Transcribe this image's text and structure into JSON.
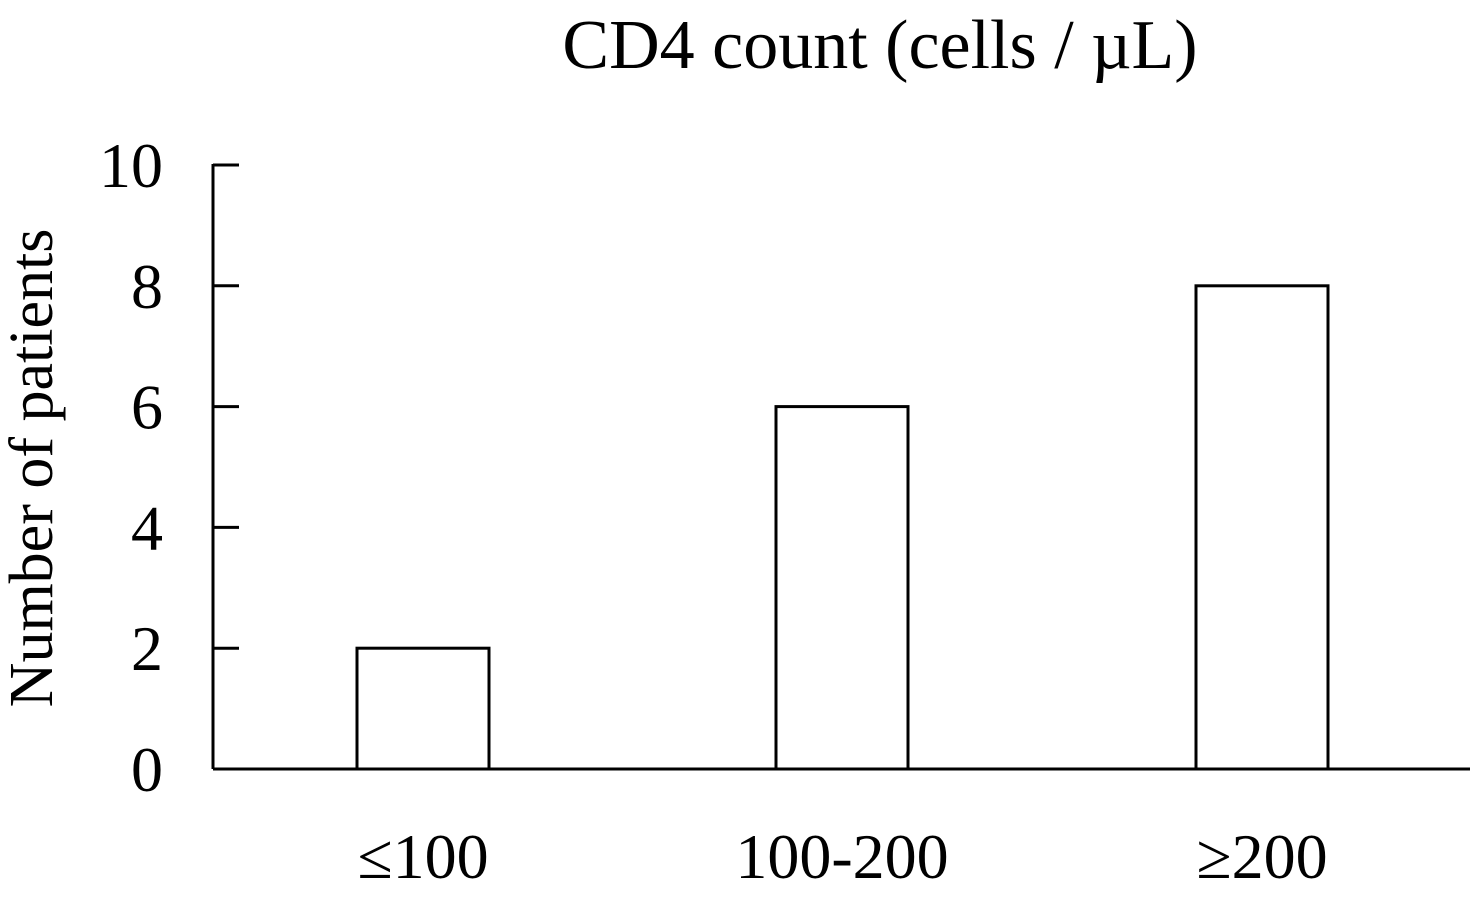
{
  "chart_data": {
    "type": "bar",
    "title": "CD4 count (cells / µL)",
    "xlabel": "",
    "ylabel": "Number of patients",
    "categories": [
      "≤100",
      "100-200",
      "≥200"
    ],
    "values": [
      2,
      6,
      8
    ],
    "ylim": [
      0,
      10
    ],
    "yticks": [
      0,
      2,
      4,
      6,
      8,
      10
    ],
    "grid": false,
    "legend": "none",
    "bar_fill": "#ffffff",
    "bar_stroke": "#000000"
  }
}
